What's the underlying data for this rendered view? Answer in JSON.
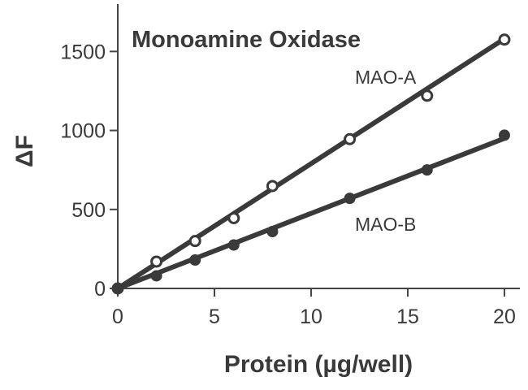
{
  "chart_data": {
    "type": "line",
    "title": "Monoamine Oxidase",
    "xlabel": "Protein (µg/well)",
    "ylabel": "ΔF",
    "xlim": [
      0,
      20.8
    ],
    "ylim": [
      0,
      1800
    ],
    "xticks": [
      0,
      5,
      10,
      15,
      20
    ],
    "yticks": [
      0,
      500,
      1000,
      1500
    ],
    "grid": false,
    "series": [
      {
        "name": "MAO-A",
        "marker": "open-circle",
        "color": "#3a3a3a",
        "fit": [
          [
            0,
            0
          ],
          [
            20,
            1580
          ]
        ],
        "points": [
          {
            "x": 0,
            "y": 0
          },
          {
            "x": 2,
            "y": 170
          },
          {
            "x": 4,
            "y": 300
          },
          {
            "x": 6,
            "y": 445
          },
          {
            "x": 8,
            "y": 648
          },
          {
            "x": 12,
            "y": 945
          },
          {
            "x": 16,
            "y": 1220
          },
          {
            "x": 20,
            "y": 1575
          }
        ]
      },
      {
        "name": "MAO-B",
        "marker": "filled-circle",
        "color": "#3a3a3a",
        "fit": [
          [
            0,
            0
          ],
          [
            20,
            950
          ]
        ],
        "points": [
          {
            "x": 0,
            "y": 0
          },
          {
            "x": 2,
            "y": 80
          },
          {
            "x": 4,
            "y": 180
          },
          {
            "x": 6,
            "y": 275
          },
          {
            "x": 8,
            "y": 360
          },
          {
            "x": 12,
            "y": 570
          },
          {
            "x": 16,
            "y": 750
          },
          {
            "x": 20,
            "y": 970
          }
        ]
      }
    ]
  }
}
